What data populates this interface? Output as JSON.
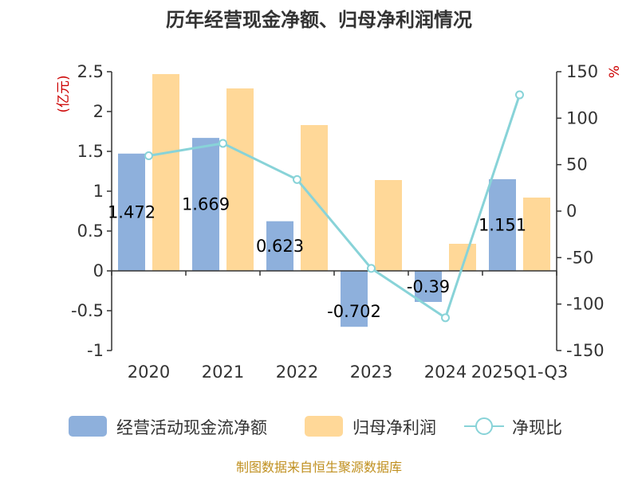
{
  "chart_data": {
    "type": "bar",
    "title": "历年经营现金净额、归母净利润情况",
    "categories": [
      "2020",
      "2021",
      "2022",
      "2023",
      "2024",
      "2025Q1-Q3"
    ],
    "y_left_unit": "(亿元)",
    "y_right_unit": "%",
    "ylim_left": [
      -1,
      2.5
    ],
    "yticks_left": [
      "2.5",
      "2",
      "1.5",
      "1",
      "0.5",
      "0",
      "-0.5",
      "-1"
    ],
    "ylim_right": [
      -150,
      150
    ],
    "yticks_right": [
      "150",
      "100",
      "50",
      "0",
      "-50",
      "-100",
      "-150"
    ],
    "series": [
      {
        "name": "经营活动现金流净额",
        "type": "bar",
        "axis": "left",
        "color": "#8eb0dc",
        "values": [
          1.472,
          1.669,
          0.623,
          -0.702,
          -0.39,
          1.151
        ],
        "labels": [
          "1.472",
          "1.669",
          "0.623",
          "-0.702",
          "-0.39",
          "1.151"
        ]
      },
      {
        "name": "归母净利润",
        "type": "bar",
        "axis": "left",
        "color": "#ffd898",
        "values": [
          2.47,
          2.29,
          1.83,
          1.14,
          0.34,
          0.92
        ]
      },
      {
        "name": "净现比",
        "type": "line",
        "axis": "right",
        "color": "#88d3d8",
        "values": [
          59.6,
          72.9,
          34.0,
          -61.6,
          -114.7,
          125.1
        ]
      }
    ],
    "footer": "制图数据来自恒生聚源数据库",
    "colors": {
      "axis": "#333333",
      "unit_text": "#cc0000",
      "footer_text": "#c09020"
    }
  }
}
